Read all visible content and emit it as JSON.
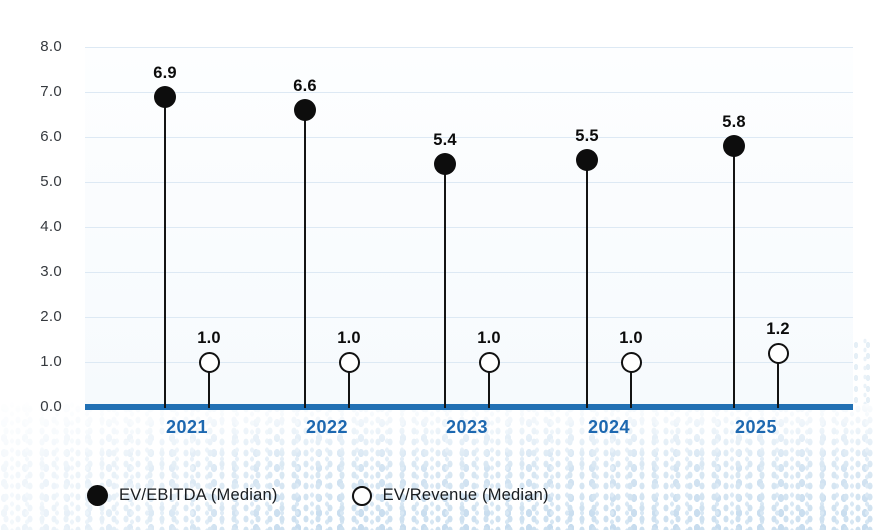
{
  "chart_data": {
    "type": "lollipop",
    "title": "",
    "categories": [
      "2021",
      "2022",
      "2023",
      "2024",
      "2025"
    ],
    "series": [
      {
        "name": "EV/EBITDA (Median)",
        "marker": "filled-circle",
        "values": [
          6.9,
          6.6,
          5.4,
          5.5,
          5.8
        ],
        "value_labels": [
          "6.9",
          "6.6",
          "5.4",
          "5.5",
          "5.8"
        ]
      },
      {
        "name": "EV/Revenue (Median)",
        "marker": "open-circle",
        "values": [
          1.0,
          1.0,
          1.0,
          1.0,
          1.2
        ],
        "value_labels": [
          "1.0",
          "1.0",
          "1.0",
          "1.0",
          "1.2"
        ]
      }
    ],
    "ylim": [
      0.0,
      8.0
    ],
    "ytick_labels": [
      "0.0",
      "1.0",
      "2.0",
      "3.0",
      "4.0",
      "5.0",
      "6.0",
      "7.0",
      "8.0"
    ],
    "grid": true,
    "legend_position": "bottom-left"
  },
  "legend": {
    "items": [
      {
        "label": "EV/EBITDA (Median)",
        "marker": "filled-circle"
      },
      {
        "label": "EV/Revenue (Median)",
        "marker": "open-circle"
      }
    ]
  },
  "colors": {
    "axis_line": "#2170b4",
    "year_label": "#1d68b0",
    "gridline": "#dde9f4",
    "stem": "#141414",
    "marker_fill": "#0d0d0d",
    "marker_open_ring": "#111111",
    "value_label": "#0c0c0c",
    "ytick_label": "#35393e",
    "legend_text": "#191c1f",
    "halftone_dot": "#cde0ef"
  }
}
